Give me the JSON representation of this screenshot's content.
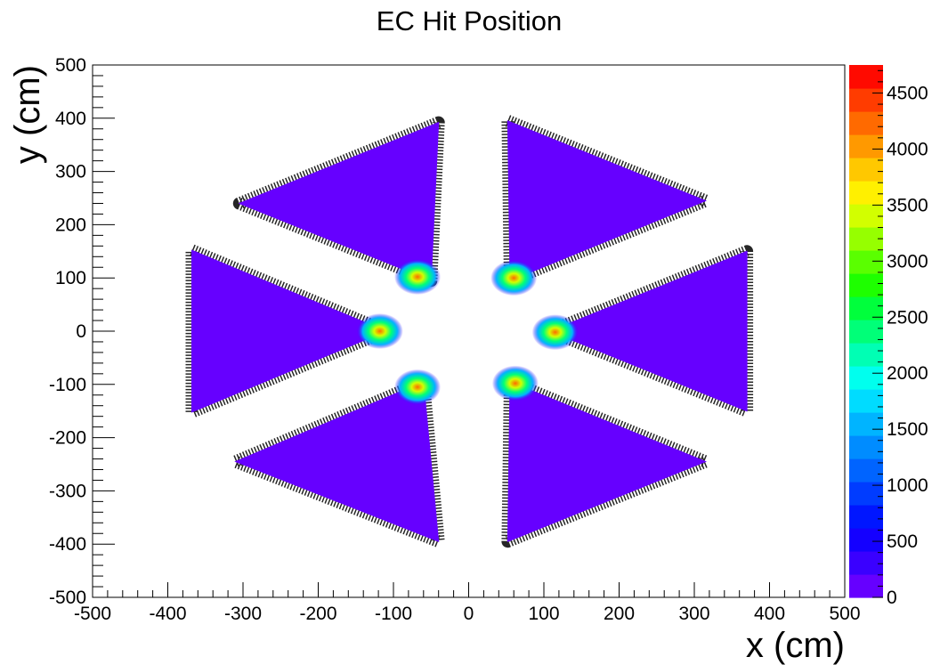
{
  "chart_data": {
    "type": "heatmap",
    "title": "EC Hit Position",
    "xlabel": "x (cm)",
    "ylabel": "y (cm)",
    "xlim": [
      -500,
      500
    ],
    "ylim": [
      -500,
      500
    ],
    "x_ticks": [
      "-500",
      "-400",
      "-300",
      "-200",
      "-100",
      "0",
      "100",
      "200",
      "300",
      "400",
      "500"
    ],
    "y_ticks": [
      "500",
      "400",
      "300",
      "200",
      "100",
      "0",
      "-100",
      "-200",
      "-300",
      "-400",
      "-500"
    ],
    "z_range": [
      0,
      4750
    ],
    "z_ticks": [
      "0",
      "500",
      "1000",
      "1500",
      "2000",
      "2500",
      "3000",
      "3500",
      "4000",
      "4500"
    ],
    "palette": [
      "#6600ff",
      "#3a00ff",
      "#1400ff",
      "#0016ff",
      "#003cff",
      "#0064ff",
      "#008cff",
      "#00b4ff",
      "#00dcff",
      "#00ffee",
      "#00ffb4",
      "#00ff78",
      "#00ff3c",
      "#1eff00",
      "#5aff00",
      "#96ff00",
      "#d2ff00",
      "#fff000",
      "#ffc800",
      "#ff9900",
      "#ff6a00",
      "#ff3c00",
      "#ff0a00"
    ],
    "grid": false,
    "sectors": [
      {
        "name": "sector-top-left",
        "corners": [
          [
            -40,
            392
          ],
          [
            -305,
            240
          ],
          [
            -50,
            95
          ]
        ],
        "hotspot": [
          -68,
          102
        ]
      },
      {
        "name": "sector-top-right",
        "corners": [
          [
            52,
            395
          ],
          [
            315,
            245
          ],
          [
            55,
            95
          ]
        ],
        "hotspot": [
          60,
          100
        ]
      },
      {
        "name": "sector-right",
        "corners": [
          [
            108,
            0
          ],
          [
            370,
            150
          ],
          [
            370,
            -150
          ]
        ],
        "hotspot": [
          115,
          -2
        ]
      },
      {
        "name": "sector-bottom-right",
        "corners": [
          [
            55,
            -95
          ],
          [
            315,
            -245
          ],
          [
            52,
            -395
          ]
        ],
        "hotspot": [
          62,
          -98
        ]
      },
      {
        "name": "sector-bottom-left",
        "corners": [
          [
            -60,
            -95
          ],
          [
            -310,
            -245
          ],
          [
            -40,
            -395
          ]
        ],
        "hotspot": [
          -68,
          -105
        ]
      },
      {
        "name": "sector-left",
        "corners": [
          [
            -110,
            0
          ],
          [
            -368,
            152
          ],
          [
            -368,
            -152
          ]
        ],
        "hotspot": [
          -118,
          0
        ]
      }
    ]
  }
}
